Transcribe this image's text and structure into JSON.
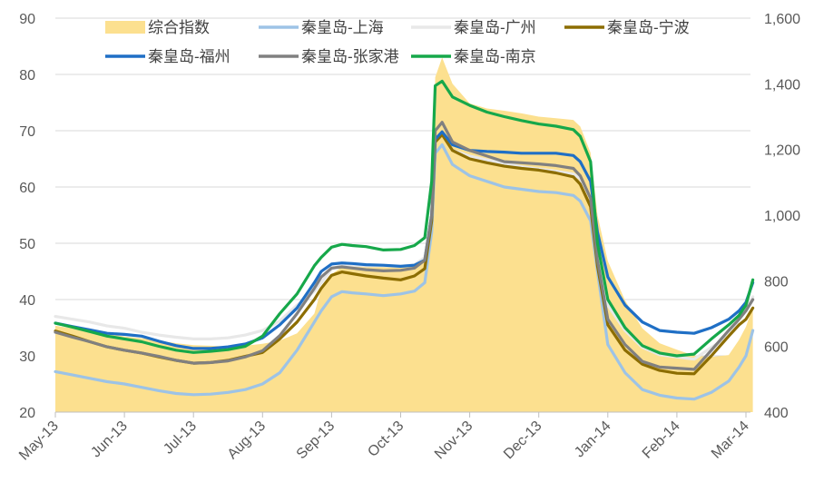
{
  "chart_data": {
    "type": "area",
    "title": "",
    "xlabel": "",
    "ylabel": "",
    "y2label": "",
    "x_categories": [
      "May-13",
      "Jun-13",
      "Jul-13",
      "Aug-13",
      "Sep-13",
      "Oct-13",
      "Nov-13",
      "Dec-13",
      "Jan-14",
      "Feb-14",
      "Mar-14"
    ],
    "ylim": [
      20,
      90
    ],
    "y_ticks": [
      20,
      30,
      40,
      50,
      60,
      70,
      80,
      90
    ],
    "y2lim": [
      400,
      1600
    ],
    "y2_ticks": [
      "400",
      "600",
      "800",
      "1,000",
      "1,200",
      "1,400",
      "1,600"
    ],
    "y2_tick_values": [
      400,
      600,
      800,
      1000,
      1200,
      1400,
      1600
    ],
    "grid": true,
    "legend_position": "top",
    "x": [
      0,
      0.25,
      0.5,
      0.75,
      1,
      1.25,
      1.5,
      1.75,
      2,
      2.25,
      2.5,
      2.75,
      3,
      3.25,
      3.5,
      3.75,
      3.85,
      4,
      4.15,
      4.3,
      4.5,
      4.75,
      5,
      5.2,
      5.35,
      5.45,
      5.5,
      5.6,
      5.75,
      6,
      6.25,
      6.5,
      6.75,
      7,
      7.25,
      7.5,
      7.6,
      7.75,
      7.85,
      8,
      8.25,
      8.5,
      8.75,
      9,
      9.25,
      9.5,
      9.75,
      9.9,
      10,
      10.1
    ],
    "series": [
      {
        "name": "综合指数",
        "axis": "right",
        "kind": "area",
        "color": "#FCE08F",
        "values": [
          663,
          655,
          649,
          640,
          630,
          625,
          618,
          610,
          604,
          602,
          600,
          602,
          608,
          618,
          640,
          700,
          775,
          820,
          842,
          846,
          850,
          846,
          843,
          848,
          865,
          950,
          1420,
          1480,
          1400,
          1340,
          1325,
          1318,
          1310,
          1300,
          1295,
          1290,
          1270,
          1190,
          1000,
          860,
          740,
          655,
          610,
          590,
          572,
          568,
          574,
          620,
          660,
          720
        ]
      },
      {
        "name": "秦皇岛-上海",
        "axis": "left",
        "kind": "line",
        "color": "#9DC3E6",
        "values": [
          27.2,
          26.6,
          26,
          25.4,
          25,
          24.4,
          23.8,
          23.3,
          23.1,
          23.2,
          23.5,
          24,
          25,
          27,
          31,
          36,
          38,
          40.5,
          41.4,
          41.2,
          41,
          40.7,
          41,
          41.5,
          43,
          52,
          66,
          67.5,
          64,
          62,
          61,
          60,
          59.6,
          59.2,
          59,
          58.5,
          57.5,
          54,
          45,
          32,
          27,
          24,
          23,
          22.5,
          22.3,
          23.5,
          25.5,
          28,
          30,
          34.5
        ]
      },
      {
        "name": "秦皇岛-广州",
        "axis": "left",
        "kind": "line",
        "color": "#E8E8E8",
        "values": [
          37,
          36.5,
          36,
          35.3,
          34.9,
          34.2,
          33.7,
          33.3,
          33,
          33,
          33.2,
          33.7,
          34.5,
          36.2,
          39,
          41.5,
          43,
          45.4,
          46.2,
          46.1,
          46,
          46,
          45.9,
          46.2,
          47.5,
          55,
          68,
          69.5,
          66.5,
          65.5,
          64.8,
          64.2,
          63.6,
          63.2,
          62.8,
          62.3,
          61.5,
          58,
          48,
          39,
          34.5,
          31.5,
          30.2,
          29.8,
          29.4,
          31.5,
          33.5,
          36.5,
          38.5,
          40.5
        ]
      },
      {
        "name": "秦皇岛-宁波",
        "axis": "left",
        "kind": "line",
        "color": "#8C6D00",
        "values": [
          34.4,
          33.5,
          32.5,
          31.6,
          31,
          30.5,
          29.8,
          29.2,
          28.7,
          28.8,
          29.2,
          29.9,
          30.6,
          33,
          36,
          40,
          42,
          44.3,
          44.9,
          44.6,
          44.2,
          43.8,
          43.5,
          44.2,
          45.5,
          54,
          68,
          69.3,
          66.5,
          65,
          64.3,
          63.7,
          63.3,
          63,
          62.5,
          61.8,
          60.5,
          56.5,
          46,
          35.5,
          31,
          28.5,
          27.4,
          26.9,
          26.8,
          30,
          33.5,
          35.5,
          36.5,
          38.5
        ]
      },
      {
        "name": "秦皇岛-福州",
        "axis": "left",
        "kind": "line",
        "color": "#1F6FC5",
        "values": [
          35.8,
          35.2,
          34.6,
          34,
          33.8,
          33.5,
          32.6,
          31.8,
          31.3,
          31.3,
          31.6,
          32.1,
          33.2,
          35.5,
          38.5,
          43,
          45,
          46.3,
          46.5,
          46.4,
          46.2,
          46.1,
          45.9,
          46.1,
          47,
          55,
          68.5,
          69.8,
          67.5,
          66.5,
          66.3,
          66.2,
          66,
          66,
          66,
          65.6,
          64.5,
          61,
          52,
          44,
          39,
          36,
          34.5,
          34.2,
          34,
          35,
          36.5,
          38,
          39.5,
          43
        ]
      },
      {
        "name": "秦皇岛-张家港",
        "axis": "left",
        "kind": "line",
        "color": "#808080",
        "values": [
          34.2,
          33.3,
          32.5,
          31.6,
          31,
          30.5,
          29.9,
          29.2,
          28.7,
          28.8,
          29.1,
          29.8,
          30.9,
          33.6,
          37.5,
          42,
          44,
          45.6,
          45.8,
          45.6,
          45.3,
          45.1,
          45.2,
          45.6,
          47,
          55,
          70,
          71.5,
          68,
          66.5,
          65.5,
          64.5,
          64.3,
          64.1,
          63.8,
          63.3,
          62,
          58,
          47,
          36.5,
          32,
          29,
          28,
          27.8,
          27.6,
          31,
          34.5,
          36.5,
          38,
          40
        ]
      },
      {
        "name": "秦皇岛-南京",
        "axis": "left",
        "kind": "line",
        "color": "#16A84A",
        "values": [
          35.8,
          35.1,
          34.3,
          33.5,
          33,
          32.5,
          31.7,
          31,
          30.6,
          30.8,
          31.1,
          31.7,
          33.5,
          37.5,
          41,
          46,
          47.5,
          49.3,
          49.8,
          49.6,
          49.4,
          48.8,
          48.9,
          49.6,
          51,
          61,
          78,
          78.8,
          76,
          74.5,
          73.3,
          72.5,
          71.8,
          71.2,
          70.8,
          70.2,
          69,
          64.5,
          50,
          40,
          35,
          31.8,
          30.5,
          30,
          30.3,
          33,
          35.5,
          37.2,
          39,
          43.5
        ]
      }
    ]
  }
}
